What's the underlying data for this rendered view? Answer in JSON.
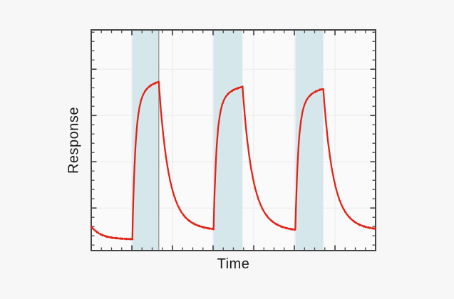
{
  "chart_data": {
    "type": "line",
    "title": "",
    "xlabel": "Time",
    "ylabel": "Response",
    "x_range": [
      0,
      28
    ],
    "y_range": [
      0,
      23.85
    ],
    "axis_tick_labels": "none (unlabeled tick marks on all four sides, pointing inward)",
    "x_ticks": {
      "minor_step": 1,
      "major_every": 4,
      "major_phase": 0
    },
    "y_ticks": {
      "count": 24,
      "offset": 0.6,
      "minor_step": 1,
      "major_every": 5,
      "major_phase": 4
    },
    "grid": true,
    "legend": "none",
    "exposure_bands": [
      {
        "start": 4.05,
        "end": 6.65
      },
      {
        "start": 12.05,
        "end": 14.9
      },
      {
        "start": 20.1,
        "end": 22.85
      }
    ],
    "marker_line_x": 6.65,
    "series": [
      {
        "name": "response-curve",
        "color": "#e12317",
        "start_value": 2.6,
        "peaks": [
          18.2,
          17.7,
          17.5
        ],
        "baseline_start": 1.25,
        "trough_between_pulses": 2.3,
        "segments": [
          {
            "phase": "initial-baseline-decay",
            "t": [
              0,
              4.05
            ],
            "target": 1.22,
            "comp": [
              [
                1.0,
                1.0
              ]
            ]
          },
          {
            "phase": "rise-pulse-1",
            "t": [
              4.05,
              6.65
            ],
            "target": 18.6,
            "comp": [
              [
                0.78,
                0.28
              ],
              [
                0.22,
                1.1
              ]
            ]
          },
          {
            "phase": "recovery-1",
            "t": [
              6.65,
              12.05
            ],
            "target": 2.1,
            "comp": [
              [
                0.82,
                0.9
              ],
              [
                0.18,
                2.0
              ]
            ]
          },
          {
            "phase": "rise-pulse-2",
            "t": [
              12.05,
              14.9
            ],
            "target": 17.95,
            "comp": [
              [
                0.78,
                0.28
              ],
              [
                0.22,
                1.1
              ]
            ]
          },
          {
            "phase": "recovery-2",
            "t": [
              14.9,
              20.1
            ],
            "target": 2.0,
            "comp": [
              [
                0.82,
                0.9
              ],
              [
                0.18,
                2.0
              ]
            ]
          },
          {
            "phase": "rise-pulse-3",
            "t": [
              20.1,
              22.85
            ],
            "target": 17.75,
            "comp": [
              [
                0.78,
                0.28
              ],
              [
                0.22,
                1.1
              ]
            ]
          },
          {
            "phase": "recovery-3",
            "t": [
              22.85,
              28
            ],
            "target": 2.1,
            "comp": [
              [
                0.82,
                0.9
              ],
              [
                0.18,
                2.0
              ]
            ]
          }
        ]
      }
    ],
    "colors": {
      "page_background": "#f7f7f7",
      "plot_background": "#fafafa",
      "exposure_band": "#d6e7ec",
      "grid_line": "#eaeaea",
      "frame": "#454545",
      "marker_line": "#9a9a9a",
      "curve": "#e12317",
      "label_text": "#1a1a1a"
    }
  }
}
